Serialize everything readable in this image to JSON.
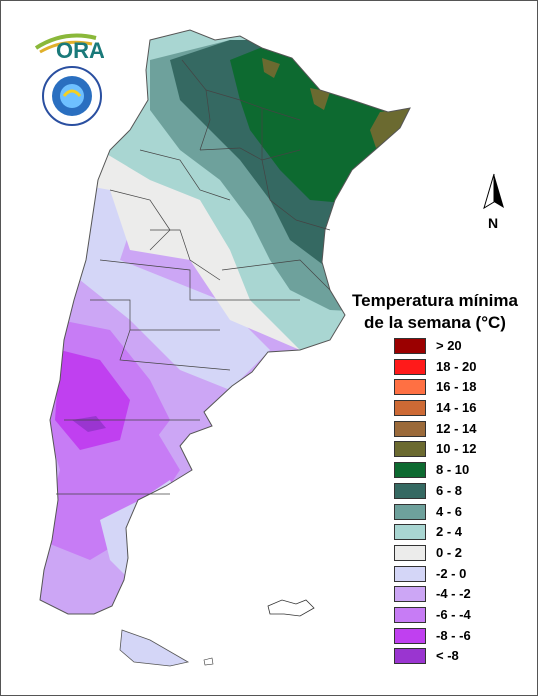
{
  "logo": {
    "brand_text": "ORA",
    "seal_text": "SERVICIO METEOROLOGICO NACIONAL ARGENTINA"
  },
  "north_arrow": {
    "label": "N"
  },
  "legend": {
    "title_line1": "Temperatura mínima",
    "title_line2": "de la semana (°C)",
    "items": [
      {
        "label": "> 20",
        "color": "#9b0000"
      },
      {
        "label": "18 - 20",
        "color": "#ff1a1a"
      },
      {
        "label": "16 - 18",
        "color": "#ff7043"
      },
      {
        "label": "14 - 16",
        "color": "#cd6a35"
      },
      {
        "label": "12 - 14",
        "color": "#9b6a3a"
      },
      {
        "label": "10 - 12",
        "color": "#6b6a30"
      },
      {
        "label": "8 - 10",
        "color": "#0d6a30"
      },
      {
        "label": "6 - 8",
        "color": "#356962"
      },
      {
        "label": "4 - 6",
        "color": "#6ea19c"
      },
      {
        "label": "2 - 4",
        "color": "#a9d6d2"
      },
      {
        "label": "0 - 2",
        "color": "#ececeb"
      },
      {
        "label": "-2 - 0",
        "color": "#d4d6f7"
      },
      {
        "label": "-4 - -2",
        "color": "#cca6f5"
      },
      {
        "label": "-6 - -4",
        "color": "#c77cf5"
      },
      {
        "label": "-8 - -6",
        "color": "#c040f0"
      },
      {
        "label": "< -8",
        "color": "#9a35d0"
      }
    ]
  }
}
